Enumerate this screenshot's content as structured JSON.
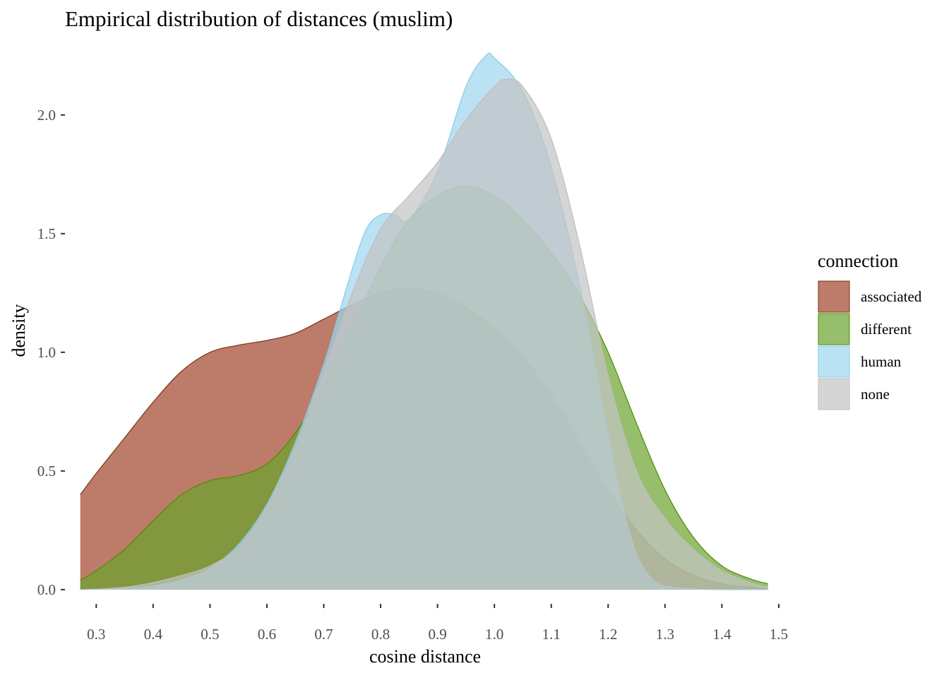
{
  "chart_data": {
    "type": "area",
    "title": "Empirical distribution of distances (muslim)",
    "xlabel": "cosine distance",
    "ylabel": "density",
    "xlim": [
      0.245,
      1.515
    ],
    "ylim": [
      -0.06,
      2.3
    ],
    "x_ticks": [
      0.3,
      0.4,
      0.5,
      0.6,
      0.7,
      0.8,
      0.9,
      1.0,
      1.1,
      1.2,
      1.3,
      1.4,
      1.5
    ],
    "x_tick_labels": [
      "0.3",
      "0.4",
      "0.5",
      "0.6",
      "0.7",
      "0.8",
      "0.9",
      "1.0",
      "1.1",
      "1.2",
      "1.3",
      "1.4",
      "1.5"
    ],
    "y_ticks": [
      0.0,
      0.5,
      1.0,
      1.5,
      2.0
    ],
    "y_tick_labels": [
      "0.0",
      "0.5",
      "1.0",
      "1.5",
      "2.0"
    ],
    "grid": false,
    "legend": {
      "title": "connection",
      "position": "right"
    },
    "series": [
      {
        "name": "associated",
        "fill": "#A0452A",
        "stroke": "#7A3318",
        "x": [
          0.272,
          0.3,
          0.35,
          0.4,
          0.45,
          0.5,
          0.55,
          0.6,
          0.65,
          0.7,
          0.75,
          0.8,
          0.85,
          0.9,
          0.95,
          1.0,
          1.05,
          1.1,
          1.15,
          1.2,
          1.25,
          1.3,
          1.35,
          1.4,
          1.45,
          1.481
        ],
        "y": [
          0.4,
          0.49,
          0.64,
          0.79,
          0.92,
          1.0,
          1.03,
          1.05,
          1.08,
          1.14,
          1.2,
          1.25,
          1.27,
          1.25,
          1.19,
          1.1,
          0.98,
          0.82,
          0.62,
          0.42,
          0.25,
          0.13,
          0.06,
          0.025,
          0.01,
          0.005
        ]
      },
      {
        "name": "different",
        "fill": "#6AA22C",
        "stroke": "#4E8C00",
        "x": [
          0.272,
          0.3,
          0.35,
          0.4,
          0.45,
          0.5,
          0.55,
          0.6,
          0.65,
          0.7,
          0.75,
          0.8,
          0.85,
          0.9,
          0.95,
          1.0,
          1.05,
          1.1,
          1.15,
          1.2,
          1.25,
          1.3,
          1.35,
          1.4,
          1.45,
          1.481
        ],
        "y": [
          0.04,
          0.08,
          0.17,
          0.29,
          0.4,
          0.46,
          0.48,
          0.53,
          0.66,
          0.86,
          1.1,
          1.36,
          1.56,
          1.66,
          1.7,
          1.66,
          1.56,
          1.42,
          1.24,
          1.0,
          0.7,
          0.42,
          0.22,
          0.1,
          0.045,
          0.025
        ]
      },
      {
        "name": "human",
        "fill": "#9DD5EE",
        "stroke": "#86CCE8",
        "x": [
          0.272,
          0.3,
          0.35,
          0.4,
          0.45,
          0.5,
          0.55,
          0.6,
          0.65,
          0.7,
          0.725,
          0.75,
          0.775,
          0.8,
          0.825,
          0.85,
          0.9,
          0.95,
          0.985,
          1.0,
          1.05,
          1.1,
          1.15,
          1.2,
          1.225,
          1.25,
          1.275,
          1.3,
          1.35,
          1.4,
          1.45,
          1.481
        ],
        "y": [
          0.0,
          0.002,
          0.005,
          0.015,
          0.04,
          0.09,
          0.19,
          0.36,
          0.62,
          0.95,
          1.15,
          1.35,
          1.52,
          1.58,
          1.58,
          1.56,
          1.76,
          2.12,
          2.25,
          2.24,
          2.1,
          1.78,
          1.28,
          0.66,
          0.36,
          0.15,
          0.05,
          0.015,
          0.003,
          0.0,
          0.0,
          0.0
        ]
      },
      {
        "name": "none",
        "fill": "#C3C3C3",
        "stroke": "#BEBEBE",
        "x": [
          0.272,
          0.3,
          0.35,
          0.4,
          0.45,
          0.5,
          0.55,
          0.6,
          0.65,
          0.7,
          0.75,
          0.8,
          0.85,
          0.9,
          0.95,
          1.0,
          1.02,
          1.05,
          1.1,
          1.15,
          1.2,
          1.25,
          1.3,
          1.35,
          1.4,
          1.45,
          1.481
        ],
        "y": [
          0.0,
          0.002,
          0.01,
          0.03,
          0.06,
          0.1,
          0.18,
          0.35,
          0.6,
          0.92,
          1.25,
          1.52,
          1.66,
          1.8,
          1.98,
          2.12,
          2.15,
          2.12,
          1.9,
          1.45,
          0.9,
          0.5,
          0.3,
          0.17,
          0.08,
          0.03,
          0.01
        ]
      }
    ]
  }
}
